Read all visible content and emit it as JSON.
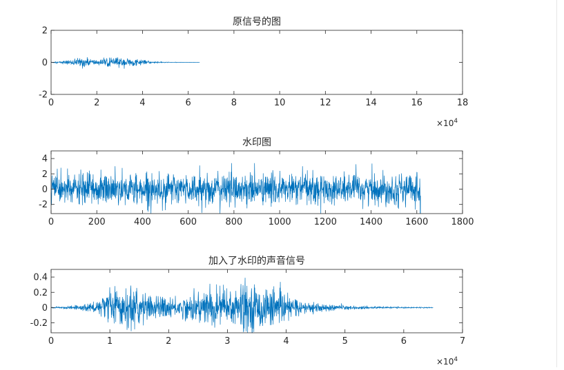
{
  "figure": {
    "line_color": "#0072bd",
    "axes_color": "#262626",
    "background": "#ffffff"
  },
  "chart_data": [
    {
      "type": "line",
      "title": "原信号的图",
      "xlabel": "",
      "ylabel": "",
      "xlim": [
        0,
        180000
      ],
      "ylim": [
        -2,
        2
      ],
      "x_ticks": [
        0,
        20000,
        40000,
        60000,
        80000,
        100000,
        120000,
        140000,
        160000,
        180000
      ],
      "x_tick_labels": [
        "0",
        "2",
        "4",
        "6",
        "8",
        "10",
        "12",
        "14",
        "16",
        "18"
      ],
      "x_exponent": "×10",
      "x_exponent_power": "4",
      "y_ticks": [
        -2,
        0,
        2
      ],
      "y_tick_labels": [
        "-2",
        "0",
        "2"
      ],
      "grid": false,
      "series": [
        {
          "x_range": [
            0,
            65000
          ],
          "envelope_x": [
            0,
            2000,
            5000,
            8000,
            10000,
            12000,
            14000,
            16000,
            18000,
            20000,
            22000,
            24000,
            26000,
            28000,
            30000,
            32000,
            34000,
            36000,
            38000,
            40000,
            42000,
            44000,
            46000,
            48000,
            50000,
            52000,
            55000,
            58000,
            61000,
            65000
          ],
          "envelope_amp": [
            0.02,
            0.04,
            0.08,
            0.12,
            0.18,
            0.22,
            0.3,
            0.22,
            0.18,
            0.15,
            0.16,
            0.2,
            0.24,
            0.25,
            0.26,
            0.25,
            0.23,
            0.2,
            0.17,
            0.13,
            0.09,
            0.06,
            0.04,
            0.03,
            0.02,
            0.015,
            0.01,
            0.008,
            0.005,
            0.003
          ]
        }
      ]
    },
    {
      "type": "line",
      "title": "水印图",
      "xlabel": "",
      "ylabel": "",
      "xlim": [
        0,
        1800
      ],
      "ylim": [
        -3.2,
        5
      ],
      "x_ticks": [
        0,
        200,
        400,
        600,
        800,
        1000,
        1200,
        1400,
        1600,
        1800
      ],
      "x_tick_labels": [
        "0",
        "200",
        "400",
        "600",
        "800",
        "1000",
        "1200",
        "1400",
        "1600",
        "1800"
      ],
      "y_ticks": [
        -2,
        0,
        2,
        4
      ],
      "y_tick_labels": [
        "-2",
        "0",
        "2",
        "4"
      ],
      "grid": false,
      "series": [
        {
          "x_range": [
            0,
            1616
          ],
          "noise_std": 1.0,
          "noise_clip": [
            -3.2,
            3.4
          ],
          "peaks": [
            [
              280,
              3.0
            ],
            [
              650,
              3.1
            ],
            [
              790,
              3.4
            ],
            [
              1100,
              3.0
            ],
            [
              1600,
              2.2
            ],
            [
              660,
              -3.1
            ],
            [
              1615,
              -3.2
            ]
          ]
        }
      ]
    },
    {
      "type": "line",
      "title": "加入了水印的声音信号",
      "xlabel": "",
      "ylabel": "",
      "xlim": [
        0,
        70000
      ],
      "ylim": [
        -0.33,
        0.5
      ],
      "x_ticks": [
        0,
        10000,
        20000,
        30000,
        40000,
        50000,
        60000,
        70000
      ],
      "x_tick_labels": [
        "0",
        "1",
        "2",
        "3",
        "4",
        "5",
        "6",
        "7"
      ],
      "x_exponent": "×10",
      "x_exponent_power": "4",
      "y_ticks": [
        -0.2,
        0,
        0.2,
        0.4
      ],
      "y_tick_labels": [
        "-0.2",
        "0",
        "0.2",
        "0.4"
      ],
      "grid": false,
      "series": [
        {
          "x_range": [
            0,
            65000
          ],
          "envelope_x": [
            0,
            2000,
            5000,
            7000,
            9000,
            10000,
            12000,
            14000,
            15000,
            17000,
            19000,
            21000,
            23000,
            25000,
            27000,
            29000,
            31000,
            33000,
            35000,
            37000,
            39000,
            41000,
            43000,
            45000,
            48000,
            51000,
            55000,
            60000,
            65000
          ],
          "envelope_amp": [
            0.005,
            0.01,
            0.03,
            0.06,
            0.11,
            0.17,
            0.2,
            0.28,
            0.2,
            0.13,
            0.12,
            0.11,
            0.13,
            0.18,
            0.22,
            0.24,
            0.26,
            0.27,
            0.26,
            0.22,
            0.16,
            0.1,
            0.07,
            0.05,
            0.035,
            0.02,
            0.012,
            0.007,
            0.004
          ]
        }
      ]
    }
  ]
}
